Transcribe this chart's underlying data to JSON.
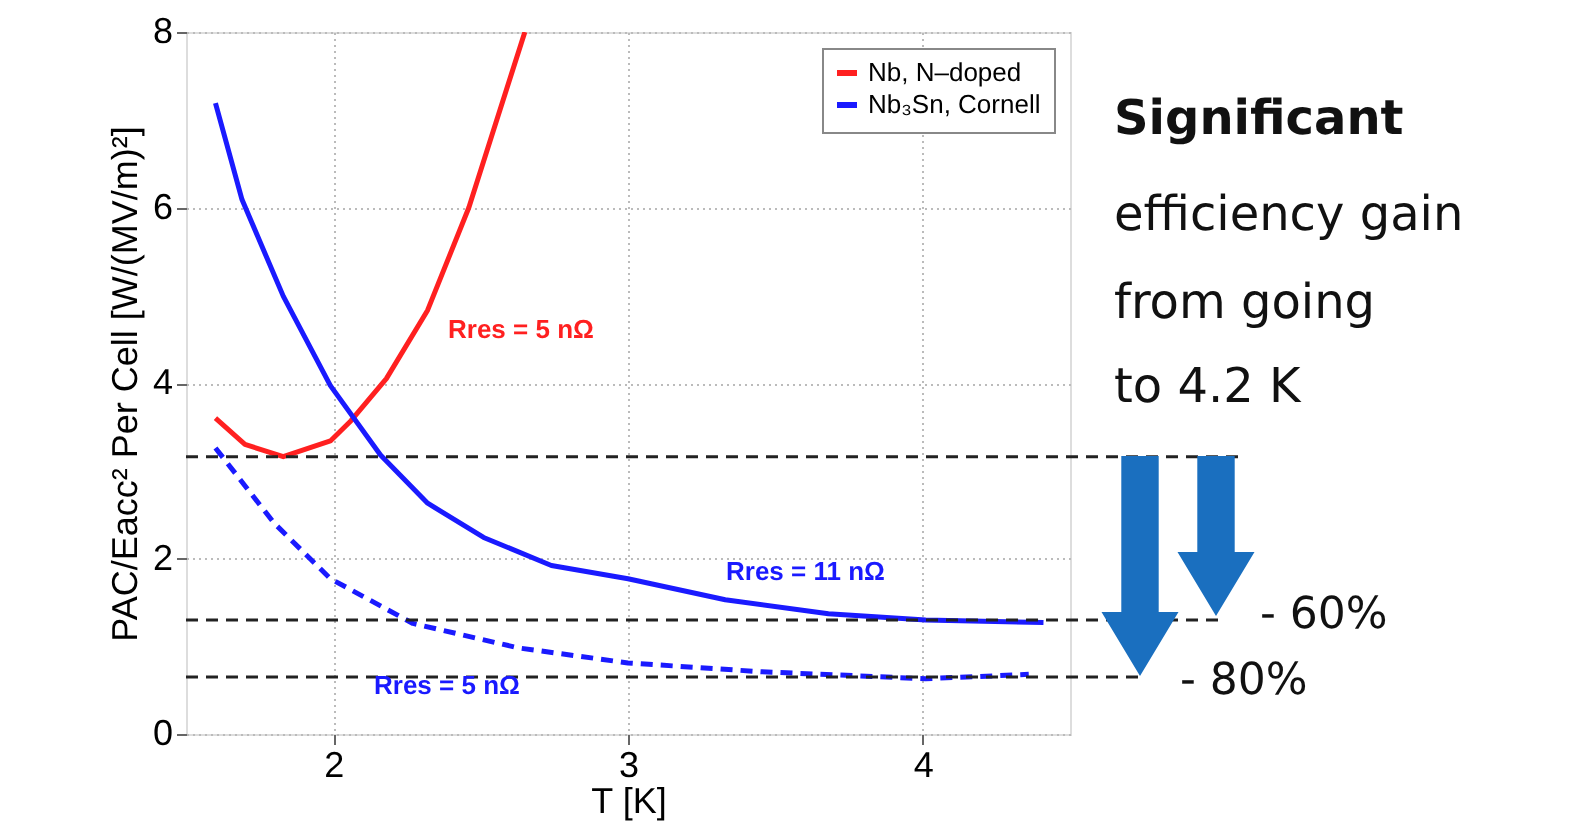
{
  "chart_data": {
    "type": "line",
    "xlabel": "T [K]",
    "ylabel": "PAC/Eacc² Per Cell [W/(MV/m)²]",
    "xlim": [
      1.5,
      4.5
    ],
    "xticks": [
      2,
      3,
      4
    ],
    "ylim": [
      0,
      8
    ],
    "yticks": [
      0,
      2,
      4,
      6,
      8
    ],
    "grid": true,
    "legend": "top right",
    "marker": "none",
    "series": [
      {
        "name": "Nb, N‒doped",
        "color": "#ff2020",
        "line_style": "solid",
        "x": [
          1.6,
          1.7,
          1.83,
          1.99,
          2.06,
          2.18,
          2.32,
          2.46,
          2.55,
          2.65
        ],
        "values": [
          3.6,
          3.3,
          3.16,
          3.34,
          3.57,
          4.05,
          4.83,
          6.0,
          6.95,
          8.0
        ]
      },
      {
        "name": "Nb₃Sn, Cornell",
        "color": "#1a1aff",
        "line_style": "solid",
        "x": [
          1.6,
          1.69,
          1.83,
          1.99,
          2.16,
          2.32,
          2.51,
          2.74,
          3.0,
          3.33,
          3.68,
          4.01,
          4.41
        ],
        "values": [
          7.19,
          6.09,
          4.99,
          3.97,
          3.18,
          2.63,
          2.24,
          1.92,
          1.77,
          1.53,
          1.37,
          1.3,
          1.27
        ]
      },
      {
        "color": "#1a1aff",
        "line_style": "dashed",
        "x": [
          1.6,
          1.8,
          1.99,
          2.27,
          2.63,
          3.0,
          3.45,
          4.01,
          4.36
        ],
        "values": [
          3.26,
          2.4,
          1.77,
          1.26,
          0.98,
          0.81,
          0.71,
          0.63,
          0.68
        ]
      }
    ],
    "ref_lines": [
      {
        "axis": "y",
        "value": 3.16,
        "color": "#222222",
        "line_style": "dashed"
      },
      {
        "axis": "y",
        "value": 1.3,
        "color": "#222222",
        "line_style": "dashed"
      },
      {
        "axis": "y",
        "value": 0.65,
        "color": "#222222",
        "line_style": "dashed"
      }
    ],
    "annotations": [
      "Rres = 5 nΩ",
      "Rres = 11 nΩ",
      "Rres = 5 nΩ",
      "Significant",
      "efficiency gain",
      "from going",
      "to 4.2 K",
      "- 60%",
      "- 80%"
    ]
  }
}
